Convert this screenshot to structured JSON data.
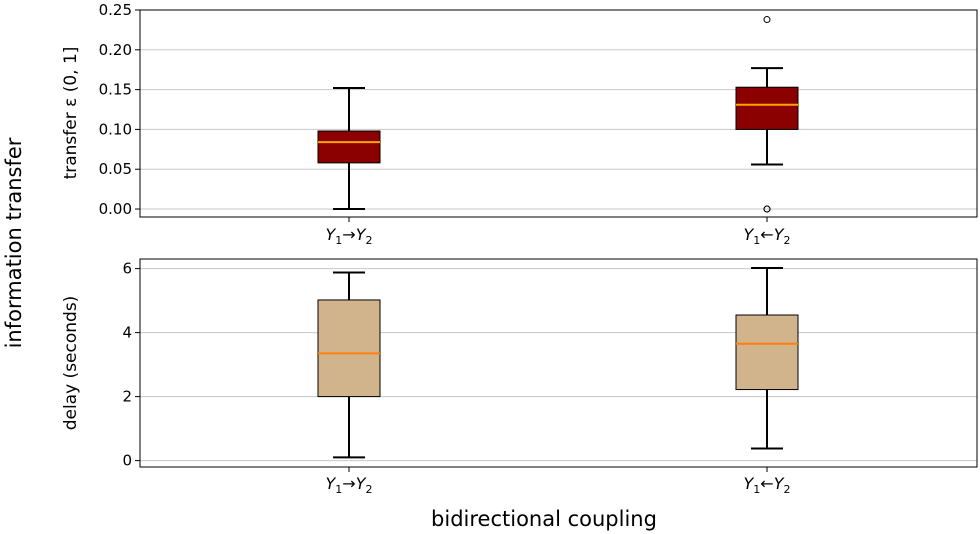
{
  "figure": {
    "supylabel": "information transfer",
    "supxlabel": "bidirectional coupling"
  },
  "chart_data": [
    {
      "type": "box",
      "ylabel": "transfer ε (0, 1]",
      "ylim": [
        -0.01,
        0.25
      ],
      "yticks": [
        0.0,
        0.05,
        0.1,
        0.15,
        0.2,
        0.25
      ],
      "ytick_labels": [
        "0.00",
        "0.05",
        "0.10",
        "0.15",
        "0.20",
        "0.25"
      ],
      "grid": "horizontal",
      "categories": [
        {
          "base": "Y",
          "s1": "1",
          "arrow": "→",
          "s2": "2"
        },
        {
          "base": "Y",
          "s1": "1",
          "arrow": "←",
          "s2": "2"
        }
      ],
      "boxes": [
        {
          "whislo": 0.0,
          "q1": 0.058,
          "med": 0.084,
          "q3": 0.098,
          "whishi": 0.152,
          "fliers": []
        },
        {
          "whislo": 0.056,
          "q1": 0.1,
          "med": 0.131,
          "q3": 0.153,
          "whishi": 0.177,
          "fliers": [
            0.238,
            0.0,
            0.0
          ]
        }
      ],
      "box_color": "#8b0000",
      "median_color": "#ffa500"
    },
    {
      "type": "box",
      "ylabel": "delay (seconds)",
      "ylim": [
        -0.2,
        6.3
      ],
      "yticks": [
        0,
        2,
        4,
        6
      ],
      "ytick_labels": [
        "0",
        "2",
        "4",
        "6"
      ],
      "grid": "horizontal",
      "categories": [
        {
          "base": "Y",
          "s1": "1",
          "arrow": "→",
          "s2": "2"
        },
        {
          "base": "Y",
          "s1": "1",
          "arrow": "←",
          "s2": "2"
        }
      ],
      "boxes": [
        {
          "whislo": 0.1,
          "q1": 2.0,
          "med": 3.35,
          "q3": 5.02,
          "whishi": 5.88,
          "fliers": []
        },
        {
          "whislo": 0.38,
          "q1": 2.22,
          "med": 3.65,
          "q3": 4.55,
          "whishi": 6.02,
          "fliers": []
        }
      ],
      "box_color": "#d2b48c",
      "median_color": "#ff7f0e"
    }
  ]
}
